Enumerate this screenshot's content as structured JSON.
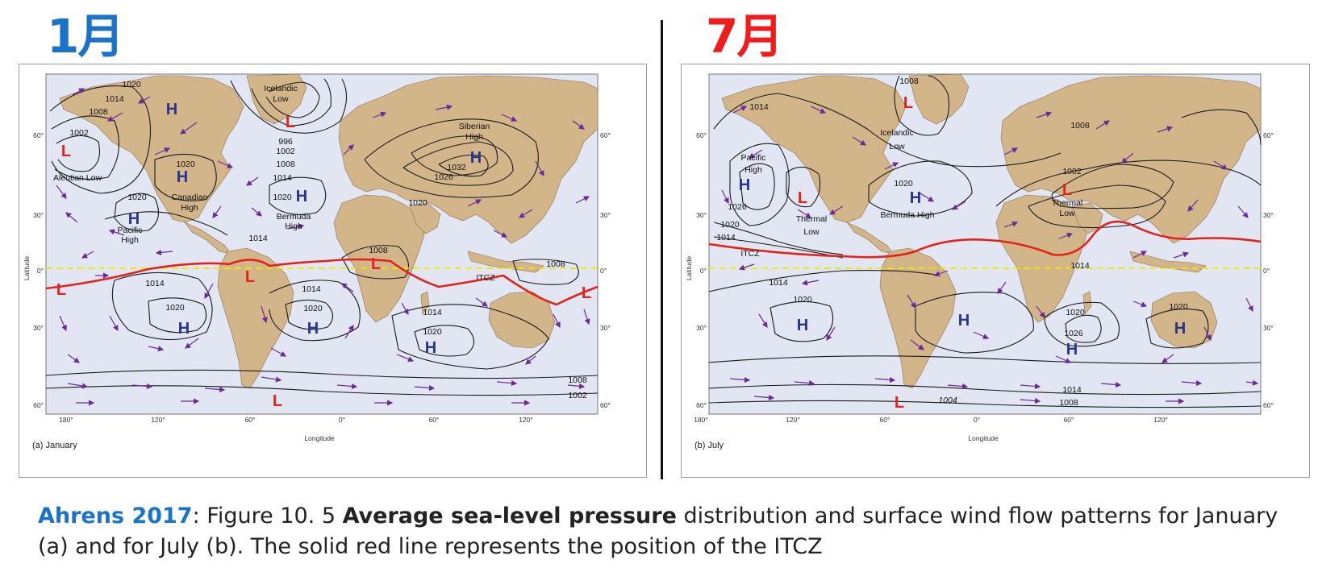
{
  "titles": {
    "january": "1月",
    "july": "7月"
  },
  "panels": {
    "january": {
      "caption": "(a) January",
      "axis_title_x": "Longitude",
      "axis_title_y": "Latitude",
      "lon_ticks": [
        "180°",
        "120°",
        "60°",
        "0°",
        "60°",
        "120°"
      ],
      "lat_ticks_left": [
        "60°",
        "30°",
        "0°",
        "30°",
        "60°"
      ],
      "lat_ticks_right": [
        "60°",
        "30°",
        "0°",
        "30°",
        "60°"
      ],
      "centers": [
        {
          "type": "H"
        },
        {
          "type": "L"
        },
        {
          "type": "L"
        },
        {
          "type": "H"
        },
        {
          "type": "H"
        },
        {
          "type": "H"
        },
        {
          "type": "H"
        },
        {
          "type": "L"
        },
        {
          "type": "L"
        },
        {
          "type": "L"
        },
        {
          "type": "H"
        },
        {
          "type": "H"
        },
        {
          "type": "H"
        },
        {
          "type": "L"
        },
        {
          "type": "L"
        }
      ],
      "labels": [
        "1020",
        "1014",
        "1008",
        "1002",
        "Aleutian Low",
        "Icelandic",
        "Low",
        "996",
        "1002",
        "1008",
        "1014",
        "1020",
        "Canadian",
        "High",
        "1020",
        "Bermuda",
        "High",
        "Siberian",
        "High",
        "1032",
        "1026",
        "1020",
        "1020",
        "Pacific",
        "High",
        "1014",
        "1008",
        "1014",
        "1020",
        "1014",
        "1020",
        "1014",
        "1020",
        "ITCZ",
        "1008",
        "1008",
        "1002"
      ]
    },
    "july": {
      "caption": "(b) July",
      "axis_title_x": "Longitude",
      "axis_title_y": "Latitude",
      "lon_ticks": [
        "180°",
        "120°",
        "60°",
        "0°",
        "60°",
        "120°"
      ],
      "lat_ticks_left": [
        "60°",
        "30°",
        "0°",
        "30°",
        "60°"
      ],
      "lat_ticks_right": [
        "60°",
        "30°",
        "0°",
        "30°",
        "60°"
      ],
      "centers": [
        {
          "type": "L"
        },
        {
          "type": "H"
        },
        {
          "type": "L"
        },
        {
          "type": "H"
        },
        {
          "type": "L"
        },
        {
          "type": "H"
        },
        {
          "type": "H"
        },
        {
          "type": "H"
        },
        {
          "type": "H"
        },
        {
          "type": "L"
        }
      ],
      "labels": [
        "1008",
        "Icelandic",
        "Low",
        "1014",
        "1008",
        "Pacific",
        "High",
        "1026",
        "1020",
        "1014",
        "Thermal",
        "Low",
        "1020",
        "Bermuda High",
        "1002",
        "Thermal",
        "Low",
        "ITCZ",
        "1014",
        "1014",
        "1020",
        "1020",
        "1026",
        "1020",
        "1014",
        "1004",
        "1008"
      ]
    }
  },
  "caption": {
    "source": "Ahrens 2017",
    "part1": ": Figure 10. 5 ",
    "bold": "Average sea-level pressure",
    "part2": " distribution and surface wind flow patterns for January (a) and for July (b). The solid red line represents the position of the ITCZ"
  },
  "colors": {
    "ocean": "#e2e6f3",
    "land": "#d3b58a",
    "isobar": "#1a1a1a",
    "itcz": "#e3231b",
    "equator": "#f2e600",
    "high": "#2a3590",
    "low": "#e3231b",
    "wind_arrow": "#6a2a9a"
  }
}
